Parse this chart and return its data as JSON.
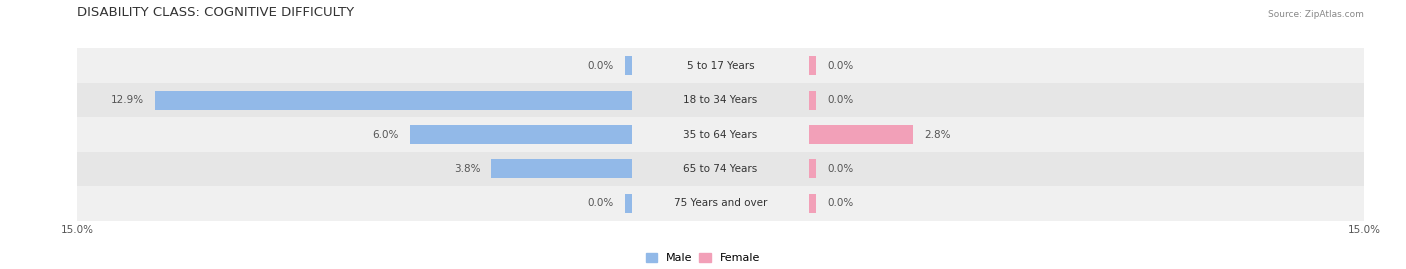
{
  "title": "DISABILITY CLASS: COGNITIVE DIFFICULTY",
  "source": "Source: ZipAtlas.com",
  "categories": [
    "5 to 17 Years",
    "18 to 34 Years",
    "35 to 64 Years",
    "65 to 74 Years",
    "75 Years and over"
  ],
  "male_values": [
    0.0,
    12.9,
    6.0,
    3.8,
    0.0
  ],
  "female_values": [
    0.0,
    0.0,
    2.8,
    0.0,
    0.0
  ],
  "male_color": "#92b9e8",
  "female_color": "#f2a0b8",
  "axis_limit": 15.0,
  "bar_height": 0.55,
  "background_color": "#ffffff",
  "title_fontsize": 9.5,
  "value_fontsize": 7.5,
  "cat_fontsize": 7.5,
  "axis_label_fontsize": 7.5,
  "legend_fontsize": 8
}
